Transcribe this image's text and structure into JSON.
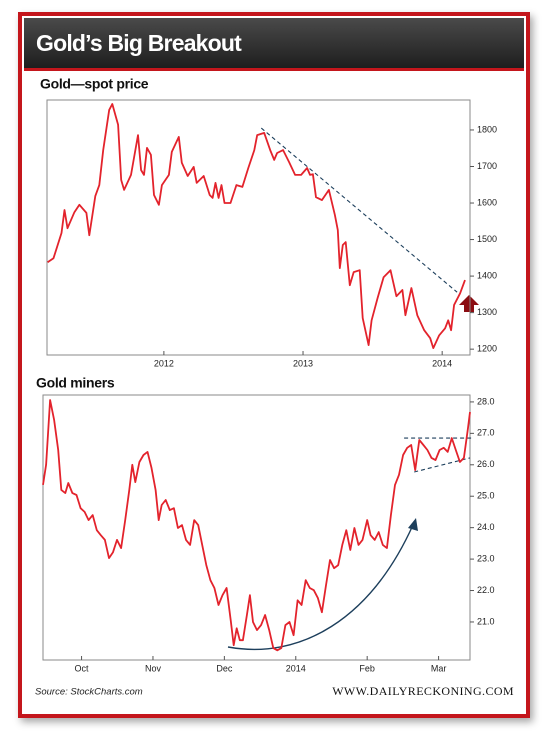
{
  "header": {
    "title": "Gold’s Big Breakout"
  },
  "chart_data": [
    {
      "type": "line",
      "title": "Gold—spot price",
      "x": [
        2011.164,
        2011.207,
        2011.264,
        2011.286,
        2011.307,
        2011.357,
        2011.393,
        2011.443,
        2011.464,
        2011.507,
        2011.536,
        2011.564,
        2011.607,
        2011.629,
        2011.671,
        2011.693,
        2011.714,
        2011.764,
        2011.814,
        2011.836,
        2011.857,
        2011.879,
        2011.907,
        2011.929,
        2011.964,
        2011.986,
        2012.036,
        2012.057,
        2012.107,
        2012.129,
        2012.171,
        2012.214,
        2012.236,
        2012.286,
        2012.329,
        2012.35,
        2012.371,
        2012.393,
        2012.414,
        2012.436,
        2012.479,
        2012.521,
        2012.564,
        2012.607,
        2012.65,
        2012.671,
        2012.721,
        2012.764,
        2012.793,
        2012.814,
        2012.857,
        2012.9,
        2012.943,
        2012.986,
        2013.029,
        2013.05,
        2013.071,
        2013.093,
        2013.136,
        2013.186,
        2013.229,
        2013.25,
        2013.264,
        2013.286,
        2013.307,
        2013.336,
        2013.364,
        2013.407,
        2013.429,
        2013.471,
        2013.493,
        2013.536,
        2013.579,
        2013.629,
        2013.671,
        2013.714,
        2013.736,
        2013.779,
        2013.821,
        2013.871,
        2013.914,
        2013.936,
        2013.979,
        2014.021,
        2014.043,
        2014.064,
        2014.086,
        2014.129,
        2014.164
      ],
      "series": [
        {
          "color": "#e3232c",
          "values": [
            1438,
            1449,
            1518,
            1581,
            1531,
            1575,
            1595,
            1573,
            1512,
            1619,
            1649,
            1745,
            1855,
            1871,
            1814,
            1663,
            1636,
            1677,
            1786,
            1690,
            1677,
            1751,
            1732,
            1622,
            1595,
            1649,
            1677,
            1740,
            1781,
            1710,
            1674,
            1699,
            1655,
            1674,
            1622,
            1614,
            1655,
            1614,
            1649,
            1600,
            1600,
            1649,
            1644,
            1696,
            1745,
            1786,
            1792,
            1745,
            1718,
            1737,
            1745,
            1712,
            1677,
            1677,
            1696,
            1677,
            1679,
            1616,
            1608,
            1636,
            1567,
            1526,
            1422,
            1485,
            1493,
            1375,
            1411,
            1416,
            1285,
            1211,
            1279,
            1340,
            1397,
            1416,
            1345,
            1362,
            1293,
            1367,
            1293,
            1252,
            1230,
            1203,
            1238,
            1257,
            1279,
            1252,
            1321,
            1353,
            1389
          ]
        }
      ],
      "trendlines": [
        {
          "x": [
            2012.7,
            2014.107
          ],
          "y": [
            1805,
            1356
          ]
        }
      ],
      "xlim": [
        2011.16,
        2014.2
      ],
      "xticks": [
        2012,
        2013,
        2014
      ],
      "ylim": [
        1184,
        1882
      ],
      "yticks": [
        1200,
        1300,
        1400,
        1500,
        1600,
        1700,
        1800
      ]
    },
    {
      "type": "line",
      "title": "Gold miners",
      "x": [
        9.46,
        9.503,
        9.56,
        9.616,
        9.673,
        9.716,
        9.773,
        9.815,
        9.872,
        9.929,
        9.986,
        10.043,
        10.099,
        10.156,
        10.213,
        10.27,
        10.327,
        10.384,
        10.44,
        10.497,
        10.554,
        10.611,
        10.668,
        10.71,
        10.753,
        10.81,
        10.867,
        10.923,
        10.98,
        11.037,
        11.08,
        11.122,
        11.179,
        11.236,
        11.293,
        11.349,
        11.406,
        11.463,
        11.52,
        11.577,
        11.634,
        11.69,
        11.747,
        11.804,
        11.861,
        11.918,
        11.974,
        12.031,
        12.088,
        12.131,
        12.173,
        12.216,
        12.259,
        12.315,
        12.358,
        12.401,
        12.457,
        12.514,
        12.571,
        12.628,
        12.685,
        12.741,
        12.798,
        12.855,
        12.912,
        12.969,
        13.026,
        13.082,
        13.139,
        13.196,
        13.253,
        13.31,
        13.366,
        13.423,
        13.48,
        13.537,
        13.594,
        13.651,
        13.707,
        13.764,
        13.821,
        13.878,
        13.935,
        14.0,
        14.048,
        14.105,
        14.162,
        14.219,
        14.276,
        14.332,
        14.389,
        14.446,
        14.503,
        14.56,
        14.616,
        14.673,
        14.73,
        14.787,
        14.844,
        14.901,
        14.957,
        15.014,
        15.071,
        15.128,
        15.185,
        15.241,
        15.298,
        15.355,
        15.412,
        15.44
      ],
      "series": [
        {
          "color": "#e3232c",
          "values": [
            25.36,
            26.0,
            28.06,
            27.43,
            26.47,
            25.2,
            25.1,
            25.42,
            25.1,
            25.04,
            24.62,
            24.5,
            24.24,
            24.4,
            23.92,
            23.76,
            23.61,
            23.03,
            23.22,
            23.61,
            23.35,
            24.24,
            25.2,
            26.0,
            25.45,
            26.09,
            26.31,
            26.41,
            25.9,
            25.2,
            24.24,
            24.72,
            24.88,
            24.56,
            24.62,
            23.99,
            24.08,
            23.61,
            23.45,
            24.24,
            24.08,
            23.45,
            22.81,
            22.33,
            22.08,
            21.54,
            21.85,
            22.08,
            21.06,
            20.26,
            20.8,
            20.42,
            20.42,
            21.22,
            21.85,
            21.0,
            20.74,
            20.9,
            21.22,
            20.74,
            20.17,
            20.1,
            20.17,
            20.9,
            21.0,
            20.58,
            21.69,
            21.54,
            22.33,
            22.08,
            22.01,
            21.76,
            21.31,
            22.17,
            22.97,
            22.71,
            22.81,
            23.45,
            23.92,
            23.29,
            23.99,
            23.45,
            23.61,
            24.24,
            23.76,
            23.61,
            23.86,
            23.45,
            23.35,
            24.4,
            25.36,
            25.68,
            26.31,
            26.54,
            26.63,
            25.83,
            26.79,
            26.63,
            26.47,
            26.22,
            26.15,
            26.47,
            26.54,
            26.41,
            26.85,
            26.47,
            26.09,
            26.22,
            27.17,
            27.68
          ]
        }
      ],
      "trendlines": [
        {
          "x": [
            14.517,
            15.469
          ],
          "y": [
            26.85,
            26.85
          ]
        },
        {
          "x": [
            14.659,
            15.44
          ],
          "y": [
            25.77,
            26.22
          ]
        }
      ],
      "xlim": [
        9.46,
        15.44
      ],
      "xticks": [
        {
          "value": 10,
          "label": "Oct"
        },
        {
          "value": 11,
          "label": "Nov"
        },
        {
          "value": 12,
          "label": "Dec"
        },
        {
          "value": 13,
          "label": "2014"
        },
        {
          "value": 14,
          "label": "Feb"
        },
        {
          "value": 15,
          "label": "Mar"
        }
      ],
      "ylim": [
        19.79,
        28.22
      ],
      "yticks": [
        {
          "value": 21,
          "label": "21.0"
        },
        {
          "value": 22,
          "label": "22.0"
        },
        {
          "value": 23,
          "label": "23.0"
        },
        {
          "value": 24,
          "label": "24.0"
        },
        {
          "value": 25,
          "label": "25.0"
        },
        {
          "value": 26,
          "label": "26.0"
        },
        {
          "value": 27,
          "label": "27.0"
        },
        {
          "value": 28,
          "label": "28.0"
        }
      ]
    }
  ],
  "footer": {
    "source": "Source: StockCharts.com",
    "site": "WWW.DAILYRECKONING.COM"
  }
}
